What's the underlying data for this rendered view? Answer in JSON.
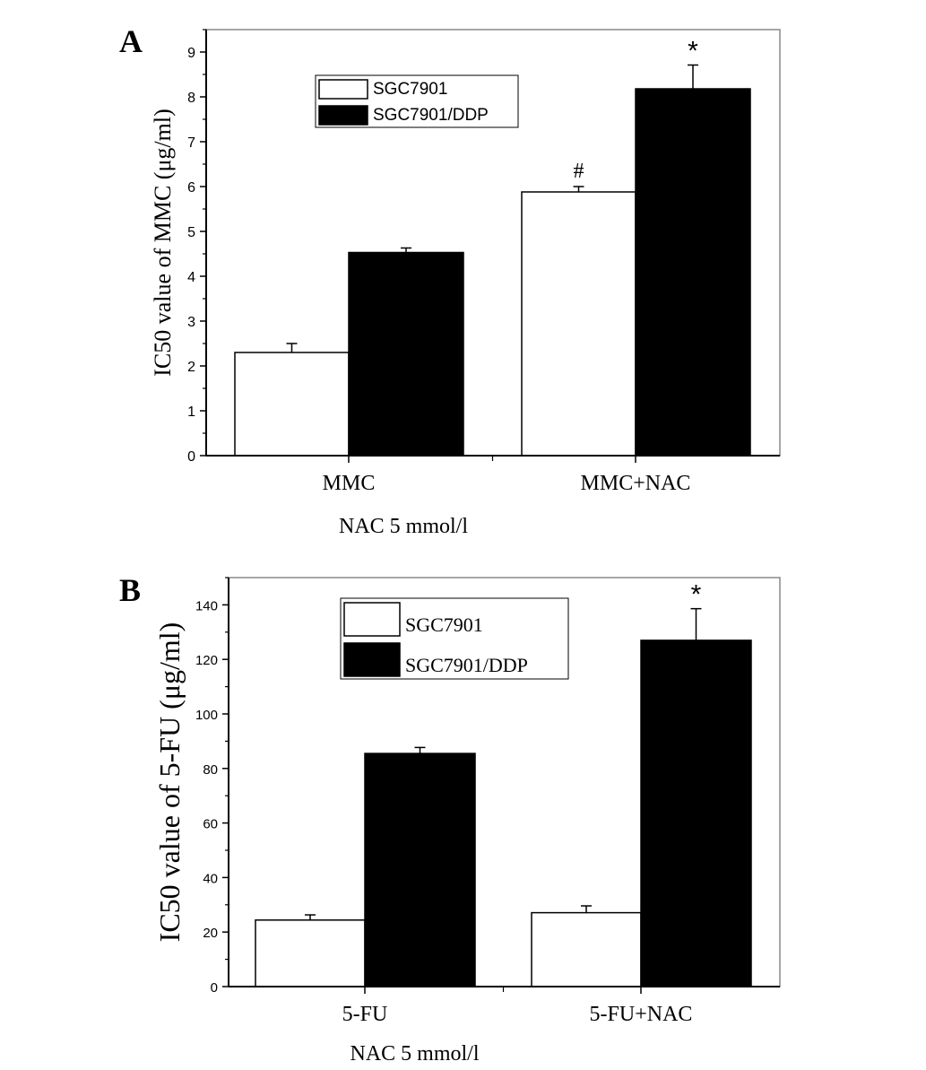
{
  "chart_data": [
    {
      "type": "bar",
      "panel_label": "A",
      "title": "",
      "categories": [
        "MMC",
        "MMC+NAC"
      ],
      "xlabel": "NAC 5 mmol/l",
      "ylabel": "IC50 value of MMC (μg/ml)",
      "ylim": [
        0,
        9.5
      ],
      "yticks": [
        0,
        1,
        2,
        3,
        4,
        5,
        6,
        7,
        8,
        9
      ],
      "legend_position": "top-center",
      "series": [
        {
          "name": "SGC7901",
          "color": "#ffffff",
          "values": [
            2.3,
            5.88
          ],
          "errors": [
            0.2,
            0.12
          ]
        },
        {
          "name": "SGC7901/DDP",
          "color": "#000000",
          "values": [
            4.53,
            8.18
          ],
          "errors": [
            0.1,
            0.53
          ]
        }
      ],
      "annotations": [
        {
          "text": "#",
          "category": 1,
          "series": 0
        },
        {
          "text": "*",
          "category": 1,
          "series": 1
        }
      ]
    },
    {
      "type": "bar",
      "panel_label": "B",
      "title": "",
      "categories": [
        "5-FU",
        "5-FU+NAC"
      ],
      "xlabel": "NAC 5 mmol/l",
      "ylabel": "IC50 value of 5-FU (μg/ml)",
      "ylim": [
        0,
        150
      ],
      "yticks": [
        0,
        20,
        40,
        60,
        80,
        100,
        120,
        140
      ],
      "legend_position": "top-center",
      "series": [
        {
          "name": "SGC7901",
          "color": "#ffffff",
          "values": [
            24.4,
            27.1
          ],
          "errors": [
            1.9,
            2.5
          ]
        },
        {
          "name": "SGC7901/DDP",
          "color": "#000000",
          "values": [
            85.5,
            127
          ],
          "errors": [
            2.2,
            11.6
          ]
        }
      ],
      "annotations": [
        {
          "text": "*",
          "category": 1,
          "series": 1
        }
      ]
    }
  ]
}
